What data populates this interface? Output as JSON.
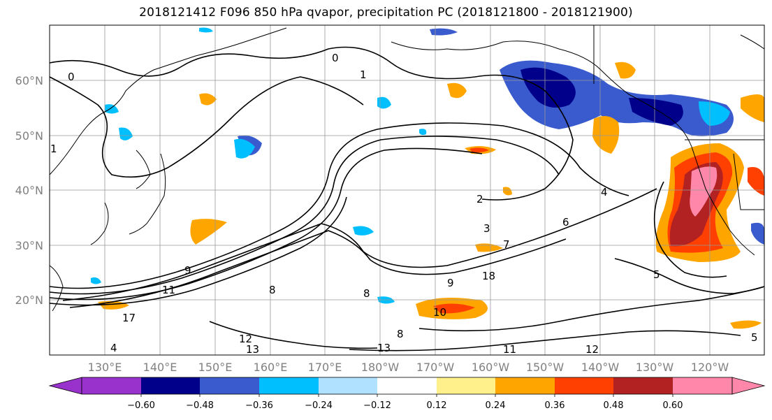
{
  "title": "2018121412 F096 850 hPa qvapor, precipitation PC (2018121800 - 2018121900)",
  "lat_labels": [
    "60°N",
    "50°N",
    "40°N",
    "30°N",
    "20°N"
  ],
  "lon_labels": [
    "130°E",
    "140°E",
    "150°E",
    "160°E",
    "170°E",
    "180°W",
    "170°W",
    "160°W",
    "150°W",
    "140°W",
    "130°W",
    "120°W"
  ],
  "contour_labels": [
    "0",
    "0",
    "1",
    "1",
    "2",
    "3",
    "4",
    "5",
    "6",
    "7",
    "8",
    "8",
    "8",
    "9",
    "9",
    "10",
    "11",
    "11",
    "12",
    "12",
    "13",
    "13",
    "17",
    "18",
    "4",
    "5"
  ],
  "colorbar": {
    "colors": [
      "#9932cc",
      "#00008b",
      "#3a5bcd",
      "#00bfff",
      "#b0e2ff",
      "#ffffff",
      "#fff08c",
      "#ffa500",
      "#ff4000",
      "#b22222",
      "#ff88aa"
    ],
    "tick_labels": [
      "−0.60",
      "−0.48",
      "−0.36",
      "−0.24",
      "−0.12",
      "0.12",
      "0.24",
      "0.36",
      "0.48",
      "0.60"
    ]
  }
}
